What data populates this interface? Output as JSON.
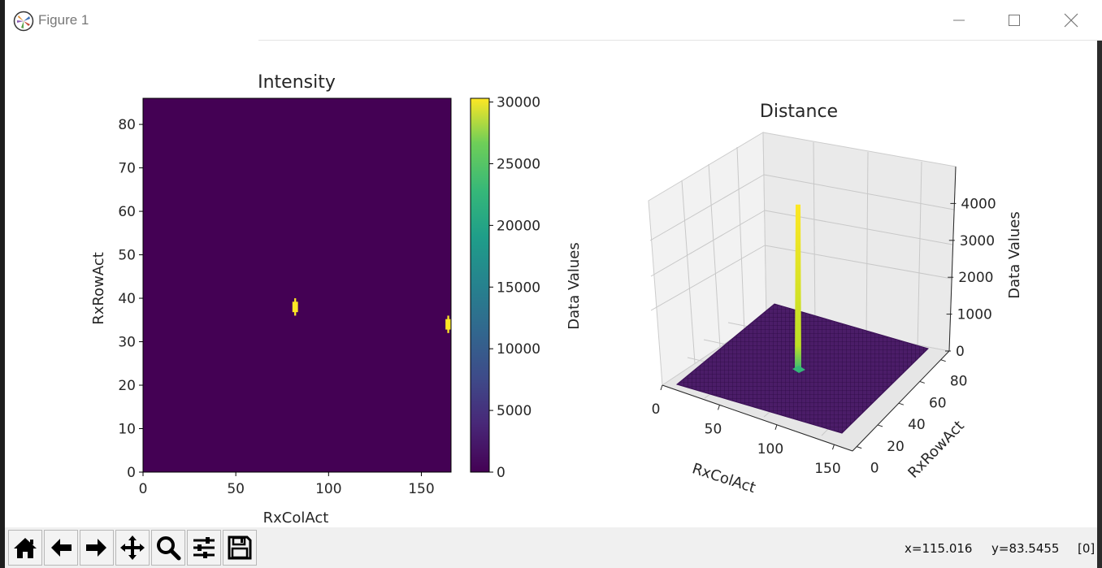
{
  "window": {
    "title": "Figure 1"
  },
  "toolbar": {
    "buttons": [
      {
        "name": "home",
        "icon": "home-icon"
      },
      {
        "name": "back",
        "icon": "arrow-left-icon"
      },
      {
        "name": "forward",
        "icon": "arrow-right-icon"
      },
      {
        "name": "pan",
        "icon": "move-icon"
      },
      {
        "name": "zoom",
        "icon": "magnifier-icon"
      },
      {
        "name": "configure-subplots",
        "icon": "sliders-icon"
      },
      {
        "name": "save",
        "icon": "floppy-icon"
      }
    ]
  },
  "status": {
    "x": "x=115.016",
    "y": "y=83.5455",
    "value": "[0]"
  },
  "chart_data": [
    {
      "type": "heatmap",
      "title": "Intensity",
      "xlabel": "RxColAct",
      "ylabel": "RxRowAct",
      "xlim": [
        0,
        166
      ],
      "ylim": [
        0,
        86
      ],
      "xticks": [
        0,
        50,
        100,
        150
      ],
      "yticks": [
        0,
        10,
        20,
        30,
        40,
        50,
        60,
        70,
        80
      ],
      "background_value": 0,
      "hotspots": [
        {
          "col": 82,
          "row": 38,
          "value": 30000
        },
        {
          "col": 166,
          "row": 34,
          "value": 30000
        }
      ],
      "colorbar": {
        "label": "Data Values",
        "range": [
          0,
          30300
        ],
        "ticks": [
          0,
          5000,
          10000,
          15000,
          20000,
          25000,
          30000
        ],
        "colormap": "viridis"
      }
    },
    {
      "type": "surface",
      "title": "Distance",
      "xlabel": "RxColAct",
      "ylabel": "RxRowAct",
      "zlabel": "Data Values",
      "xticks": [
        0,
        50,
        100,
        150
      ],
      "yticks": [
        0,
        20,
        40,
        60,
        80
      ],
      "zticks": [
        0,
        1000,
        2000,
        3000,
        4000
      ],
      "zlim": [
        0,
        5000
      ],
      "spike": {
        "col": 82,
        "row": 38,
        "value": 4500
      },
      "base_value": 0,
      "colormap": "viridis"
    }
  ],
  "colors": {
    "viridis_low": "#440154",
    "viridis_high": "#fde725",
    "surface": "#4b1d68",
    "pane": "#f2f2f2"
  }
}
